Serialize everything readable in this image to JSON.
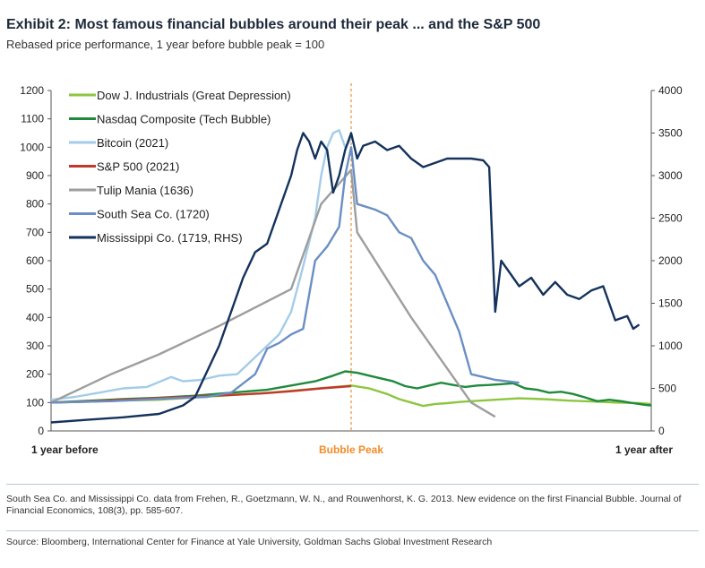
{
  "header": {
    "title": "Exhibit 2: Most famous financial bubbles around their peak ... and the S&P 500",
    "subtitle": "Rebased price performance, 1 year before bubble peak = 100"
  },
  "footer": {
    "note": "South Sea Co. and Mississippi Co. data from Frehen, R., Goetzmann, W. N., and Rouwenhorst, K. G. 2013. New evidence on the first Financial Bubble. Journal of Financial Economics, 108(3), pp. 585-607.",
    "source": "Source: Bloomberg, International Center for Finance at Yale University, Goldman Sachs Global Investment Research"
  },
  "chart_data": {
    "type": "line",
    "x_axis": {
      "range": [
        0,
        100
      ],
      "labels": [
        {
          "x": 0,
          "text": "1 year before"
        },
        {
          "x": 50,
          "text": "Bubble Peak"
        },
        {
          "x": 100,
          "text": "1 year after"
        }
      ],
      "peak_marker_x": 50
    },
    "y_left": {
      "range": [
        0,
        1200
      ],
      "ticks": [
        0,
        100,
        200,
        300,
        400,
        500,
        600,
        700,
        800,
        900,
        1000,
        1100,
        1200
      ]
    },
    "y_right": {
      "range": [
        0,
        4000
      ],
      "ticks": [
        0,
        500,
        1000,
        1500,
        2000,
        2500,
        3000,
        3500,
        4000
      ]
    },
    "grid": false,
    "legend_position": "top-left",
    "colors": {
      "peak_line": "#f28c28",
      "peak_label": "#f28c28"
    },
    "series": [
      {
        "name": "Dow J. Industrials (Great Depression)",
        "color": "#8cc63f",
        "axis": "left",
        "points": [
          [
            0,
            100
          ],
          [
            6,
            103
          ],
          [
            12,
            107
          ],
          [
            18,
            110
          ],
          [
            24,
            118
          ],
          [
            30,
            126
          ],
          [
            36,
            134
          ],
          [
            42,
            145
          ],
          [
            48,
            156
          ],
          [
            50,
            160
          ],
          [
            53,
            150
          ],
          [
            56,
            130
          ],
          [
            58,
            112
          ],
          [
            60,
            100
          ],
          [
            62,
            88
          ],
          [
            64,
            95
          ],
          [
            66,
            98
          ],
          [
            68,
            102
          ],
          [
            70,
            105
          ],
          [
            74,
            110
          ],
          [
            78,
            115
          ],
          [
            82,
            112
          ],
          [
            86,
            107
          ],
          [
            90,
            104
          ],
          [
            94,
            100
          ],
          [
            98,
            98
          ],
          [
            100,
            95
          ]
        ]
      },
      {
        "name": "Nasdaq Composite (Tech Bubble)",
        "color": "#1f8a3c",
        "axis": "left",
        "points": [
          [
            0,
            100
          ],
          [
            6,
            106
          ],
          [
            12,
            112
          ],
          [
            18,
            117
          ],
          [
            24,
            124
          ],
          [
            30,
            135
          ],
          [
            36,
            145
          ],
          [
            40,
            160
          ],
          [
            44,
            175
          ],
          [
            47,
            195
          ],
          [
            49,
            210
          ],
          [
            51,
            205
          ],
          [
            53,
            195
          ],
          [
            55,
            185
          ],
          [
            57,
            175
          ],
          [
            59,
            158
          ],
          [
            61,
            150
          ],
          [
            63,
            160
          ],
          [
            65,
            170
          ],
          [
            67,
            162
          ],
          [
            69,
            155
          ],
          [
            71,
            160
          ],
          [
            73,
            162
          ],
          [
            75,
            165
          ],
          [
            77,
            168
          ],
          [
            79,
            150
          ],
          [
            81,
            145
          ],
          [
            83,
            135
          ],
          [
            85,
            138
          ],
          [
            87,
            130
          ],
          [
            89,
            118
          ],
          [
            91,
            105
          ],
          [
            93,
            110
          ],
          [
            95,
            105
          ],
          [
            97,
            98
          ],
          [
            99,
            92
          ],
          [
            100,
            90
          ]
        ]
      },
      {
        "name": "Bitcoin (2021)",
        "color": "#a3cce8",
        "axis": "left",
        "points": [
          [
            0,
            110
          ],
          [
            4,
            120
          ],
          [
            8,
            135
          ],
          [
            12,
            150
          ],
          [
            16,
            155
          ],
          [
            20,
            190
          ],
          [
            22,
            175
          ],
          [
            25,
            180
          ],
          [
            28,
            195
          ],
          [
            31,
            200
          ],
          [
            34,
            260
          ],
          [
            36,
            300
          ],
          [
            38,
            340
          ],
          [
            40,
            420
          ],
          [
            42,
            580
          ],
          [
            44,
            750
          ],
          [
            45,
            900
          ],
          [
            46,
            1000
          ],
          [
            47,
            1050
          ],
          [
            48,
            1060
          ],
          [
            49,
            1000
          ],
          [
            50,
            1030
          ]
        ]
      },
      {
        "name": "S&P 500 (2021)",
        "color": "#c0392b",
        "axis": "left",
        "points": [
          [
            0,
            100
          ],
          [
            5,
            103
          ],
          [
            10,
            108
          ],
          [
            15,
            112
          ],
          [
            20,
            118
          ],
          [
            25,
            122
          ],
          [
            30,
            127
          ],
          [
            35,
            132
          ],
          [
            40,
            140
          ],
          [
            45,
            150
          ],
          [
            50,
            158
          ]
        ]
      },
      {
        "name": "Tulip Mania (1636)",
        "color": "#9e9e9e",
        "axis": "left",
        "points": [
          [
            0,
            100
          ],
          [
            10,
            200
          ],
          [
            18,
            270
          ],
          [
            28,
            370
          ],
          [
            40,
            500
          ],
          [
            45,
            800
          ],
          [
            50,
            920
          ],
          [
            51,
            700
          ],
          [
            60,
            400
          ],
          [
            70,
            100
          ],
          [
            74,
            50
          ]
        ]
      },
      {
        "name": "South Sea Co. (1720)",
        "color": "#6b8fc4",
        "axis": "left",
        "points": [
          [
            0,
            100
          ],
          [
            10,
            105
          ],
          [
            20,
            115
          ],
          [
            26,
            120
          ],
          [
            30,
            135
          ],
          [
            34,
            200
          ],
          [
            36,
            290
          ],
          [
            38,
            310
          ],
          [
            40,
            340
          ],
          [
            42,
            360
          ],
          [
            44,
            600
          ],
          [
            46,
            650
          ],
          [
            48,
            720
          ],
          [
            49,
            900
          ],
          [
            50,
            1000
          ],
          [
            51,
            800
          ],
          [
            54,
            780
          ],
          [
            56,
            760
          ],
          [
            58,
            700
          ],
          [
            60,
            680
          ],
          [
            62,
            600
          ],
          [
            64,
            550
          ],
          [
            66,
            450
          ],
          [
            68,
            350
          ],
          [
            70,
            200
          ],
          [
            72,
            190
          ],
          [
            74,
            180
          ],
          [
            76,
            175
          ],
          [
            78,
            170
          ]
        ]
      },
      {
        "name": "Mississippi Co. (1719, RHS)",
        "color": "#14325c",
        "axis": "right",
        "points": [
          [
            0,
            100
          ],
          [
            6,
            130
          ],
          [
            12,
            160
          ],
          [
            18,
            200
          ],
          [
            22,
            300
          ],
          [
            24,
            400
          ],
          [
            26,
            700
          ],
          [
            28,
            1000
          ],
          [
            30,
            1400
          ],
          [
            32,
            1800
          ],
          [
            34,
            2100
          ],
          [
            36,
            2200
          ],
          [
            38,
            2600
          ],
          [
            40,
            3000
          ],
          [
            41,
            3300
          ],
          [
            42,
            3500
          ],
          [
            43,
            3400
          ],
          [
            44,
            3200
          ],
          [
            45,
            3400
          ],
          [
            46,
            3300
          ],
          [
            47,
            2800
          ],
          [
            48,
            3000
          ],
          [
            49,
            3300
          ],
          [
            50,
            3500
          ],
          [
            51,
            3200
          ],
          [
            52,
            3350
          ],
          [
            54,
            3400
          ],
          [
            56,
            3300
          ],
          [
            58,
            3350
          ],
          [
            60,
            3200
          ],
          [
            62,
            3100
          ],
          [
            64,
            3150
          ],
          [
            66,
            3200
          ],
          [
            68,
            3200
          ],
          [
            70,
            3200
          ],
          [
            72,
            3180
          ],
          [
            73,
            3100
          ],
          [
            74,
            1400
          ],
          [
            75,
            2000
          ],
          [
            76,
            1900
          ],
          [
            78,
            1700
          ],
          [
            80,
            1800
          ],
          [
            82,
            1600
          ],
          [
            84,
            1750
          ],
          [
            86,
            1600
          ],
          [
            88,
            1550
          ],
          [
            90,
            1650
          ],
          [
            92,
            1700
          ],
          [
            94,
            1300
          ],
          [
            96,
            1350
          ],
          [
            97,
            1200
          ],
          [
            98,
            1250
          ]
        ]
      }
    ]
  }
}
